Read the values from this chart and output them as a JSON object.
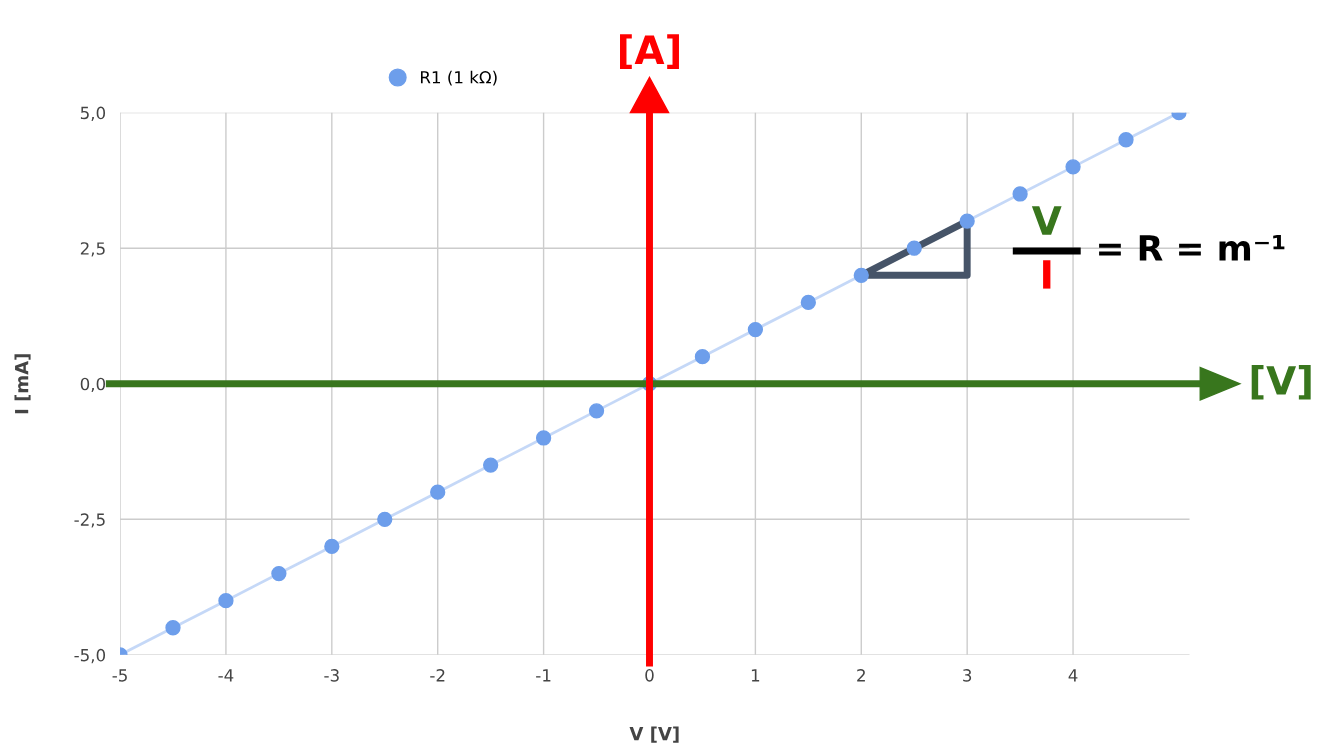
{
  "chart_data": {
    "type": "line",
    "xlabel": "V [V]",
    "ylabel": "I [mA]",
    "x": [
      -5,
      -4.5,
      -4,
      -3.5,
      -3,
      -2.5,
      -2,
      -1.5,
      -1,
      -0.5,
      0,
      0.5,
      1,
      1.5,
      2,
      2.5,
      3,
      3.5,
      4,
      4.5,
      5
    ],
    "series": [
      {
        "name": "R1 (1 kΩ)",
        "color": "#6d9eeb",
        "values": [
          -5,
          -4.5,
          -4,
          -3.5,
          -3,
          -2.5,
          -2,
          -1.5,
          -1,
          -0.5,
          0,
          0.5,
          1,
          1.5,
          2,
          2.5,
          3,
          3.5,
          4,
          4.5,
          5
        ]
      }
    ],
    "marker": "circle",
    "line_style": "solid",
    "grid": true,
    "legend": "top left",
    "xlim": [
      -5,
      5.1
    ],
    "xticks": [
      -5,
      -4,
      -3,
      -2,
      -1,
      0,
      1,
      2,
      3,
      4
    ],
    "ylim": [
      -5,
      5
    ],
    "yticks": [
      {
        "value": -5,
        "label": "-5,0"
      },
      {
        "value": -2.5,
        "label": "-2,5"
      },
      {
        "value": 0,
        "label": "0,0"
      },
      {
        "value": 2.5,
        "label": "2,5"
      },
      {
        "value": 5,
        "label": "5,0"
      }
    ],
    "ref_lines": [
      {
        "axis": "x",
        "value": 0,
        "label": "[A]",
        "color": "#ff0000"
      },
      {
        "axis": "y",
        "value": 0,
        "label": "[V]",
        "color": "#38761d"
      }
    ],
    "annotations": [
      "V",
      "I",
      "= R = m⁻¹"
    ]
  }
}
